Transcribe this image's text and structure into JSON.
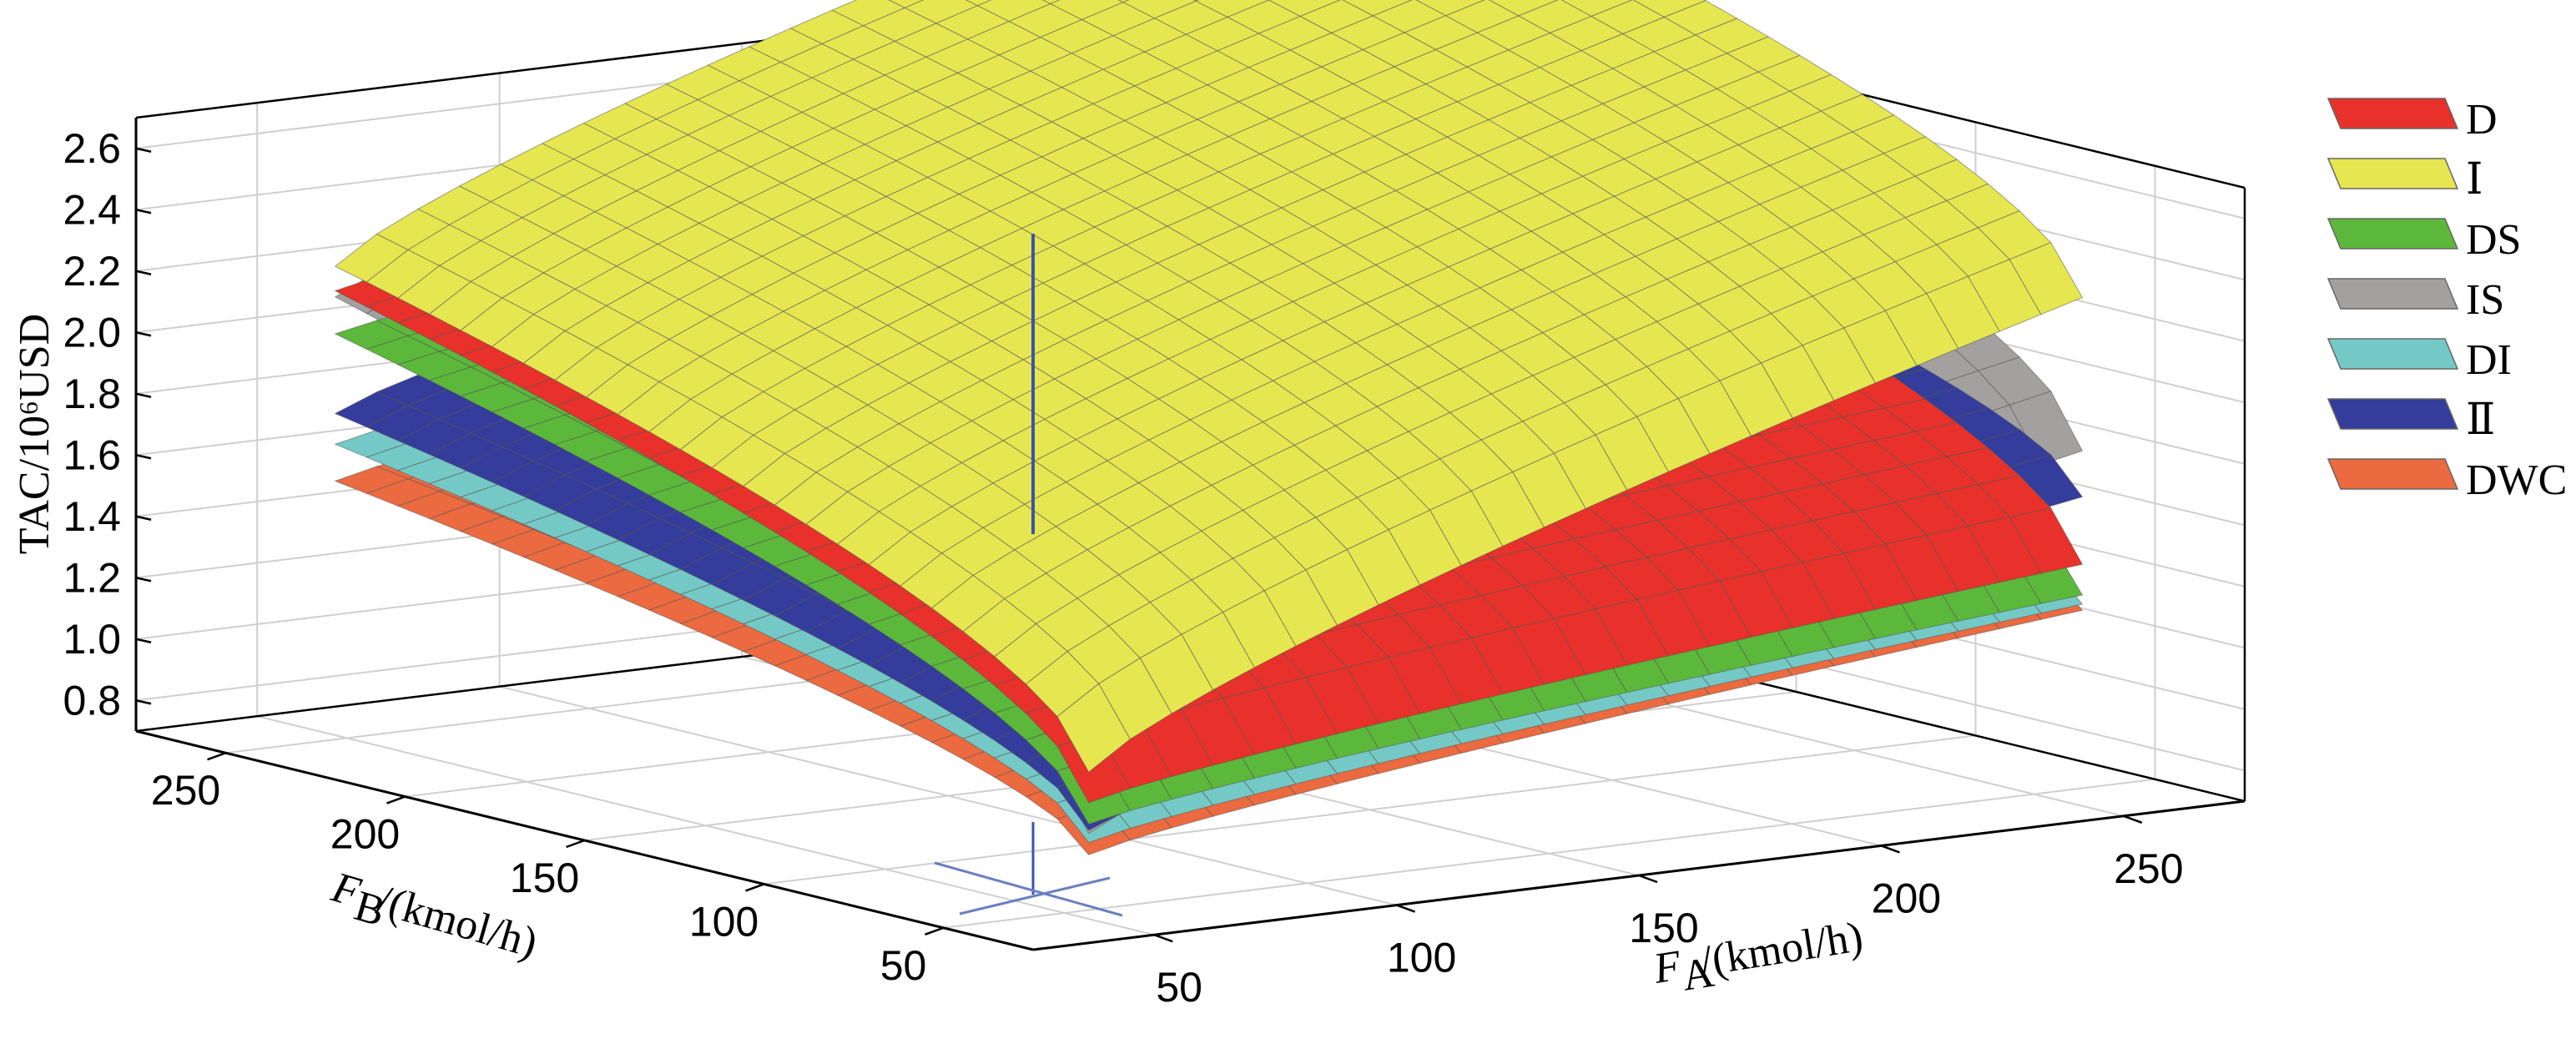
{
  "chart_data": {
    "type": "surface",
    "title": "",
    "zlabel": "TAC/10⁶USD",
    "xlabel_sym": "F",
    "xlabel_sub": "A",
    "xlabel_unit": "/(kmol/h)",
    "ylabel_sym": "F",
    "ylabel_sub": "B",
    "ylabel_unit": "/(kmol/h)",
    "z_ticks": [
      "0.8",
      "1.0",
      "1.2",
      "1.4",
      "1.6",
      "1.8",
      "2.0",
      "2.2",
      "2.4",
      "2.6"
    ],
    "x_ticks": [
      "50",
      "100",
      "150",
      "200",
      "250"
    ],
    "y_ticks": [
      "50",
      "100",
      "150",
      "200",
      "250"
    ],
    "xlim": [
      25,
      275
    ],
    "ylim": [
      25,
      275
    ],
    "zlim": [
      0.7,
      2.7
    ],
    "legend_position": "right",
    "series": [
      {
        "name": "D",
        "color": "#e8312a",
        "z_min": 1.05,
        "z_at_max_FB": 2.12,
        "z_at_max_FA": 1.43
      },
      {
        "name": "Ⅰ",
        "color": "#e6e651",
        "z_min": 1.15,
        "z_at_max_FB": 2.2,
        "z_at_max_FA": 2.3
      },
      {
        "name": "DS",
        "color": "#5cb83a",
        "z_min": 0.98,
        "z_at_max_FB": 1.98,
        "z_at_max_FA": 1.33
      },
      {
        "name": "IS",
        "color": "#a3a0a0",
        "z_min": 0.95,
        "z_at_max_FB": 2.1,
        "z_at_max_FA": 1.8
      },
      {
        "name": "DI",
        "color": "#74c9c6",
        "z_min": 0.92,
        "z_at_max_FB": 1.62,
        "z_at_max_FA": 1.3
      },
      {
        "name": "Ⅱ",
        "color": "#343d9b",
        "z_min": 0.96,
        "z_at_max_FB": 1.72,
        "z_at_max_FA": 1.65
      },
      {
        "name": "DWC",
        "color": "#ec6a3f",
        "z_min": 0.88,
        "z_at_max_FB": 1.5,
        "z_at_max_FA": 1.28
      }
    ]
  }
}
